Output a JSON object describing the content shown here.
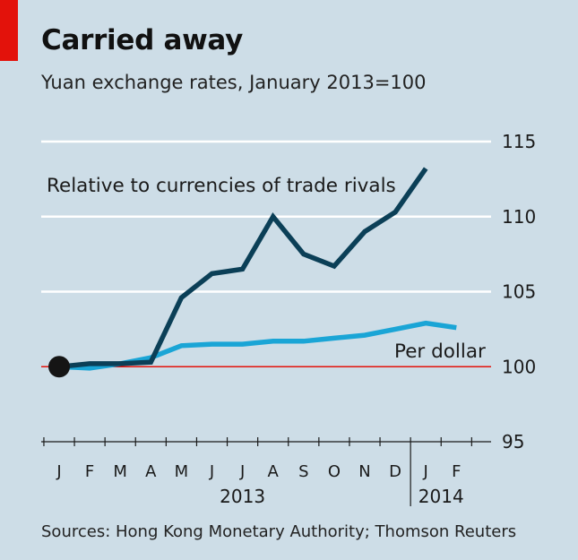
{
  "header": {
    "title": "Carried away",
    "subtitle": "Yuan exchange rates, January 2013=100"
  },
  "footer": {
    "source": "Sources: Hong Kong Monetary Authority; Thomson Reuters"
  },
  "colors": {
    "background": "#cddde7",
    "accent_red": "#e3120b",
    "series_dark": "#0b3f57",
    "series_light": "#1aa5d6",
    "baseline": "#e3120b",
    "grid": "#ffffff"
  },
  "chart_data": {
    "type": "line",
    "title": "Carried away",
    "subtitle": "Yuan exchange rates, January 2013=100",
    "x_ticks": [
      "J",
      "F",
      "M",
      "A",
      "M",
      "J",
      "J",
      "A",
      "S",
      "O",
      "N",
      "D",
      "J",
      "F"
    ],
    "year_labels": [
      {
        "label": "2013",
        "tick_index": 6
      },
      {
        "label": "2014",
        "tick_index": 12.5
      }
    ],
    "y_ticks": [
      95,
      100,
      105,
      110,
      115
    ],
    "ylim": [
      95,
      115
    ],
    "baseline": 100,
    "grid": true,
    "series": [
      {
        "name": "Relative to currencies of trade rivals",
        "color": "#0b3f57",
        "points": [
          [
            0,
            100.0
          ],
          [
            1,
            100.2
          ],
          [
            2,
            100.2
          ],
          [
            3,
            100.3
          ],
          [
            4,
            104.6
          ],
          [
            5,
            106.2
          ],
          [
            6,
            106.5
          ],
          [
            7,
            110.0
          ],
          [
            8,
            107.5
          ],
          [
            9,
            106.7
          ],
          [
            10,
            109.0
          ],
          [
            11,
            110.3
          ],
          [
            12,
            113.2
          ]
        ]
      },
      {
        "name": "Per dollar",
        "color": "#1aa5d6",
        "points": [
          [
            0,
            100.0
          ],
          [
            1,
            99.9
          ],
          [
            2,
            100.2
          ],
          [
            3,
            100.6
          ],
          [
            4,
            101.4
          ],
          [
            5,
            101.5
          ],
          [
            6,
            101.5
          ],
          [
            7,
            101.7
          ],
          [
            8,
            101.7
          ],
          [
            9,
            101.9
          ],
          [
            10,
            102.1
          ],
          [
            11,
            102.5
          ],
          [
            12,
            102.9
          ],
          [
            13,
            102.6
          ]
        ]
      }
    ],
    "start_marker": {
      "x": 0,
      "y": 100
    }
  }
}
